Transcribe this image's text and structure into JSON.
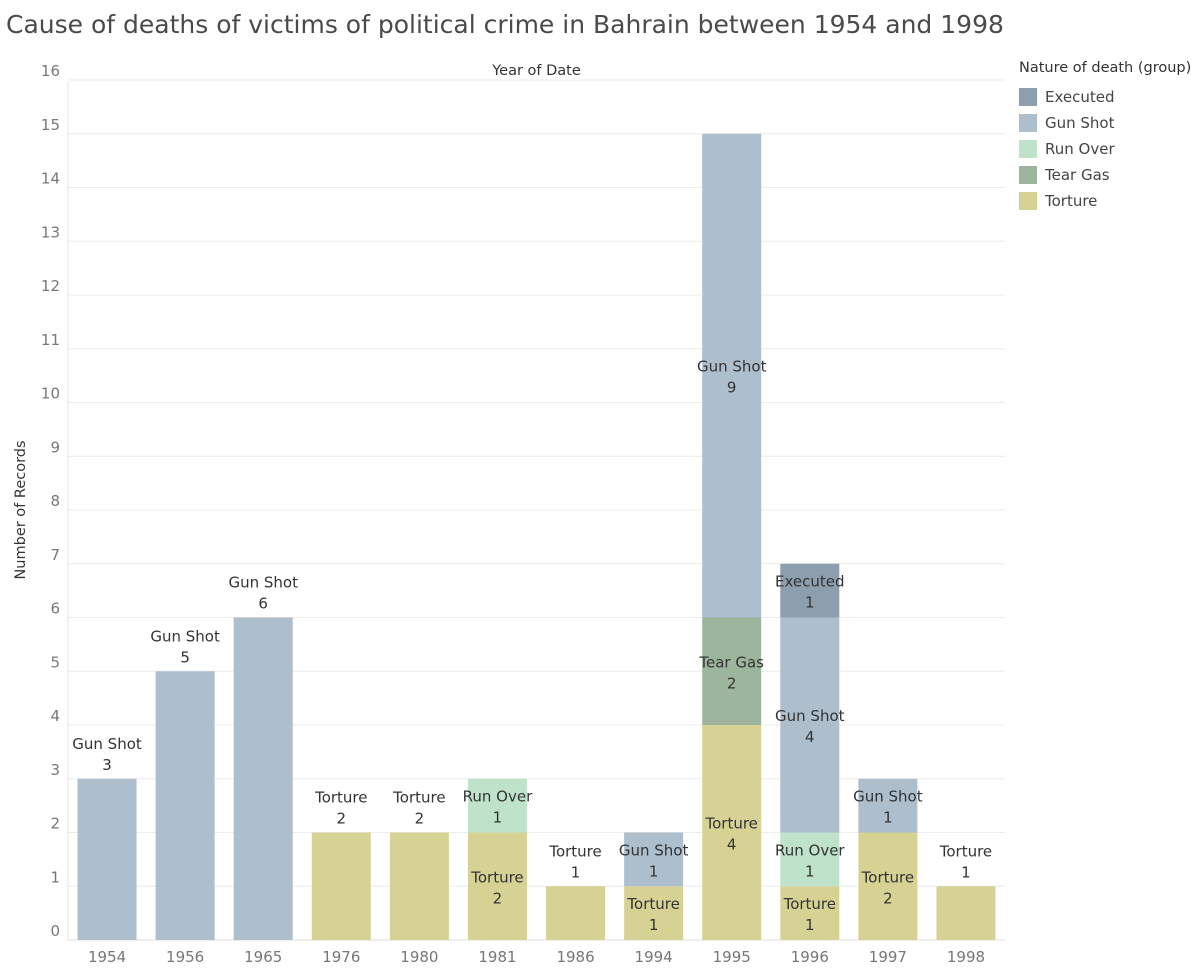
{
  "title": "Cause of deaths of victims of political crime in Bahrain between 1954 and 1998",
  "legend": {
    "title": "Nature of death (group)",
    "items": [
      {
        "label": "Executed",
        "color": "#8d9eaf"
      },
      {
        "label": "Gun Shot",
        "color": "#adbecd"
      },
      {
        "label": "Run Over",
        "color": "#bfe2cb"
      },
      {
        "label": "Tear Gas",
        "color": "#9cb59c"
      },
      {
        "label": "Torture",
        "color": "#d5d294"
      }
    ]
  },
  "chart_data": {
    "type": "bar",
    "stacked": true,
    "title": "Cause of deaths of victims of political crime in Bahrain between 1954 and 1998",
    "xlabel": "Year of Date",
    "ylabel": "Number of Records",
    "ylim": [
      0,
      16
    ],
    "yticks": [
      0,
      1,
      2,
      3,
      4,
      5,
      6,
      7,
      8,
      9,
      10,
      11,
      12,
      13,
      14,
      15,
      16
    ],
    "grid": true,
    "legend_position": "right",
    "categories": [
      "1954",
      "1956",
      "1965",
      "1976",
      "1980",
      "1981",
      "1986",
      "1994",
      "1995",
      "1996",
      "1997",
      "1998"
    ],
    "stack_order": [
      "Torture",
      "Run Over",
      "Tear Gas",
      "Gun Shot",
      "Executed"
    ],
    "series": [
      {
        "name": "Torture",
        "values": [
          0,
          0,
          0,
          2,
          2,
          2,
          1,
          1,
          4,
          1,
          2,
          1
        ]
      },
      {
        "name": "Run Over",
        "values": [
          0,
          0,
          0,
          0,
          0,
          1,
          0,
          0,
          0,
          1,
          0,
          0
        ]
      },
      {
        "name": "Tear Gas",
        "values": [
          0,
          0,
          0,
          0,
          0,
          0,
          0,
          0,
          2,
          0,
          0,
          0
        ]
      },
      {
        "name": "Gun Shot",
        "values": [
          3,
          5,
          6,
          0,
          0,
          0,
          0,
          1,
          9,
          4,
          1,
          0
        ]
      },
      {
        "name": "Executed",
        "values": [
          0,
          0,
          0,
          0,
          0,
          0,
          0,
          0,
          0,
          1,
          0,
          0
        ]
      }
    ]
  }
}
